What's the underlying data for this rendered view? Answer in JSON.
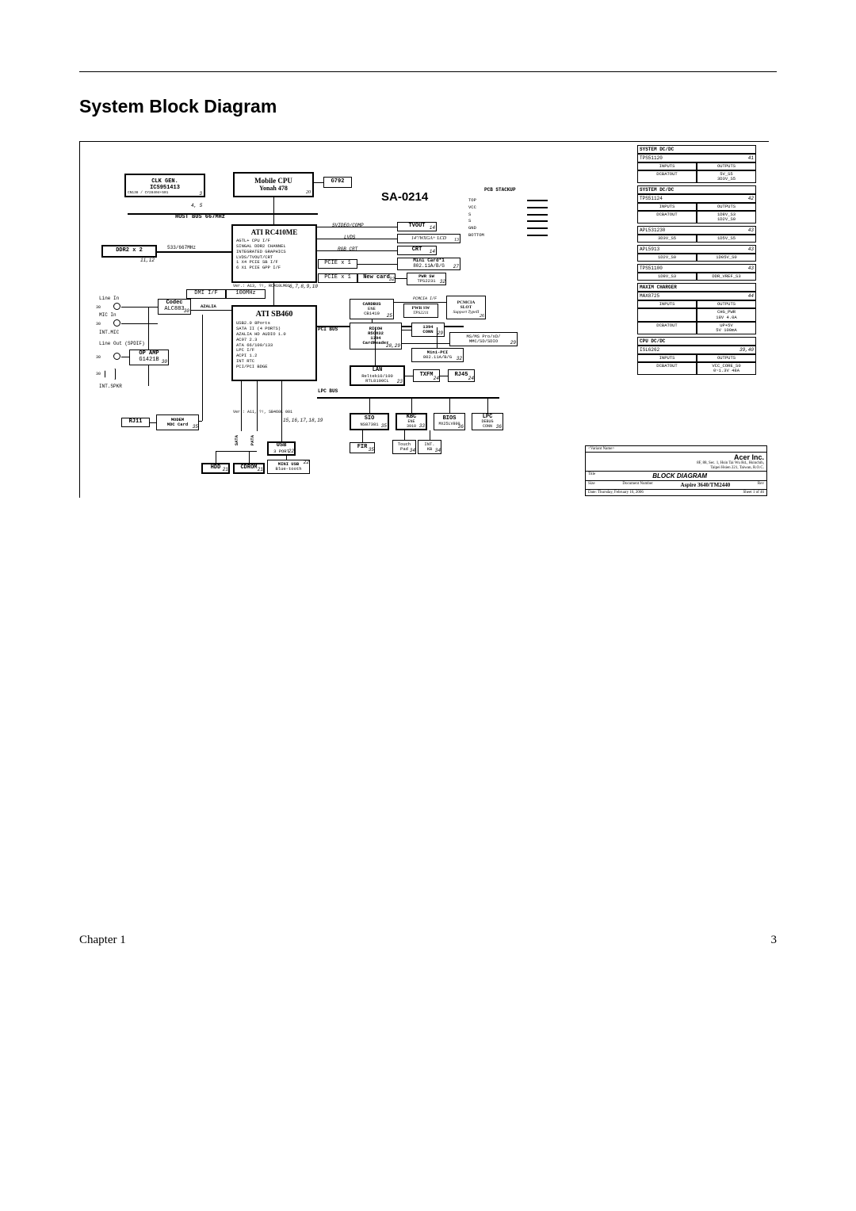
{
  "page": {
    "title": "System Block Diagram",
    "chapter_label": "Chapter 1",
    "page_number": "3"
  },
  "diagram": {
    "project_code": "SA-0214",
    "pcb_stackup_label": "PCB STACKUP",
    "stackup_layers": [
      "TOP",
      "VCC",
      "S",
      "S",
      "GND",
      "BOTTOM"
    ],
    "blocks": {
      "clk": {
        "title": "CLK GEN.",
        "sub": "ICS951413",
        "note": "CN138  /  CY28404+501",
        "page": "3"
      },
      "cpu": {
        "title": "Mobile CPU",
        "sub": "Yonah 478",
        "page": "20"
      },
      "g792": {
        "title": "G792"
      },
      "hostbus": "HOST BUS   667MHz",
      "north": {
        "title": "ATI RC410ME",
        "lines": [
          "AGTL+ CPU I/F",
          "SINGAL DDR2 CHANNEL",
          "INTEGRATED GRAPHICS",
          "LVDS/TVOUT/CRT",
          "1 X4 PCIE SB I/F",
          "6 X1 PCIE GPP I/F"
        ],
        "ver": "Ver.: A13, ?!, RC410LM01",
        "pages": "6,7,8,9,10"
      },
      "ddr": {
        "title": "DDR2 x 2",
        "speed": "533/667MHz",
        "page": "11,12"
      },
      "svideo": "SVIDEO/COMP",
      "tvout": {
        "title": "TVOUT",
        "page": "14"
      },
      "lvds": "LVDS",
      "lcd": {
        "title": "14\"/WXGA+ LCD",
        "page": "13"
      },
      "rgb": "RGB CRT",
      "crt": {
        "title": "CRT",
        "page": "14"
      },
      "pciex1a": "PCIE x 1",
      "minicard1": {
        "title": "Mini Card*1",
        "sub": "802.11A/B/G",
        "page": "27"
      },
      "pciex1b": "PCIE x 1",
      "newcard": {
        "title": "New card",
        "page": "32"
      },
      "pwrsw_a": {
        "title": "PWR SW",
        "sub": "TPS2231",
        "page": "32"
      },
      "dmi": {
        "l": "DMI I/F",
        "r": "100MHz"
      },
      "south": {
        "title": "ATI SB460",
        "lines": [
          "USB2.0 8Ports",
          "SATA II (4 PORTS)",
          "AZALIA HD AUDIO 1.0",
          "AC97 2.3",
          "ATA 66/100/133",
          "LPC I/F",
          "ACPI 1.2",
          "INT RTC",
          "PCI/PCI BDGE"
        ],
        "ver": "Ver.: A11, ?!, SB460L 001",
        "pages": "15,16,17,18,19"
      },
      "azalia": "AZALIA",
      "codec": {
        "title": "Codec",
        "sub": "ALC883",
        "page": "30"
      },
      "audio_labels": {
        "linein": "Line In",
        "micin": "MIC In",
        "intmic": "INT.MIC",
        "lineout": "Line Out (SPDIF)",
        "intspkr": "INT.SPKR"
      },
      "opamp": {
        "title": "OP AMP",
        "sub": "G1421B",
        "page": "30"
      },
      "pcibus": "PCI BUS",
      "cardbus": {
        "title": "CARDBUS",
        "sub": "ENE",
        "sub2": "CB1410",
        "page": "25"
      },
      "pcmciaif": "PCMCIA I/F",
      "pcmcia": {
        "title": "PCMCIA",
        "sub": "SLOT",
        "page": "26",
        "note": "Support TypeII"
      },
      "pwrsw_b": {
        "title": "PWR SW",
        "sub": "TPS2211"
      },
      "ricoh": {
        "title": "RICOH",
        "sub": "R5C832",
        "sub2": "1394",
        "sub3": "CardReader",
        "page": "28,29"
      },
      "conn1394": {
        "title": "1394",
        "sub": "CONN",
        "page": "29"
      },
      "cardreader_slot": {
        "title": "MS/MS Pro/xD/",
        "sub": "MMC/SD/SDIO",
        "page": "29"
      },
      "minipci": {
        "title": "Mini-PCI",
        "sub": "802.11A/B/G",
        "page": "32"
      },
      "lan": {
        "title": "LAN",
        "sub": "Reltek10/100",
        "sub2": "RTL8100CL",
        "page": "23"
      },
      "txfm": {
        "title": "TXFM",
        "page": "24"
      },
      "rj45": {
        "title": "RJ45",
        "page": "24"
      },
      "lpcbus": "LPC BUS",
      "sio": {
        "title": "SIO",
        "sub": "NS87381",
        "page": "35"
      },
      "kbc": {
        "title": "KBC",
        "sub": "ENE",
        "sub2": "3910",
        "page": "33"
      },
      "bios": {
        "title": "BIOS",
        "sub": "MX25LV800",
        "page": "36"
      },
      "lpc": {
        "title": "LPC",
        "sub": "DEBUG",
        "sub2": "CONN",
        "page": "36"
      },
      "fir": {
        "title": "FIR",
        "page": "35"
      },
      "touchpad": {
        "title": "Touch",
        "sub": "Pad",
        "page": "34"
      },
      "intkb": {
        "title": "INT.",
        "sub": "KB",
        "page": "34"
      },
      "usb": {
        "title": "USB",
        "sub": "3 PORT",
        "page": "22"
      },
      "miniusb": {
        "title": "MINI USB",
        "sub": "Blue-tooth",
        "page": "22"
      },
      "hdd": {
        "title": "HDD",
        "page": "21"
      },
      "cdrom": {
        "title": "CDROM",
        "page": "21"
      },
      "sata": "SATA",
      "pata": "PATA",
      "modem": {
        "title": "MODEM",
        "sub": "MDC Card",
        "page": "35"
      },
      "rj11": {
        "title": "RJ11"
      }
    },
    "power_tables": [
      {
        "head": "SYSTEM DC/DC",
        "chip": "TPS51120",
        "page": "41",
        "rows": [
          [
            "INPUTS",
            "OUTPUTS"
          ],
          [
            "DCBATOUT",
            "5V_S5\n3D3V_S5"
          ]
        ]
      },
      {
        "head": "SYSTEM DC/DC",
        "chip": "TPS51124",
        "page": "42",
        "rows": [
          [
            "INPUTS",
            "OUTPUTS"
          ],
          [
            "DCBATOUT",
            "1D8V_S3\n1D2V_S0"
          ]
        ]
      },
      {
        "head": "",
        "chip": "APL531230",
        "page": "",
        "rows": [
          [
            "3D3V_S5",
            "1D5V_S5"
          ]
        ],
        "split_after": "43"
      },
      {
        "head": "",
        "chip": "APL5913",
        "page": "",
        "rows": [
          [
            "1D2V_S0",
            "1D05V_S0"
          ]
        ],
        "split_after": "43"
      },
      {
        "head": "",
        "chip": "TPS51100",
        "page": "",
        "rows": [
          [
            "1D8V_S3",
            "DDR_VREF_S3"
          ]
        ],
        "split_after": "43"
      },
      {
        "head": "MAXIM CHARGER",
        "chip": "MAX8725",
        "page": "44",
        "rows": [
          [
            "INPUTS",
            "OUTPUTS"
          ],
          [
            "",
            "CHG_PWR\n18V  4.0A"
          ],
          [
            "DCBATOUT",
            "UP+5V\n5V  100mA"
          ]
        ]
      },
      {
        "head": "CPU DC/DC",
        "chip": "ISL6262",
        "page": "39,40",
        "rows": [
          [
            "INPUTS",
            "OUTPUTS"
          ],
          [
            "DCBATOUT",
            "VCC_CORE_S0\n0~1.3V  48A"
          ]
        ]
      }
    ],
    "titleblock": {
      "variant": "<Variant Name>",
      "company": "Acer Inc.",
      "addr": "8F, 88, Sec. 1, Hsin Tai Wu Rd., Hsinchih,\nTaipei Hsien 221, Taiwan, R.O.C.",
      "docname": "BLOCK DIAGRAM",
      "model": "Aspire 3640/TM2440",
      "date": "Date:  Thursday, February 16, 2006",
      "sheet": "Sheet   1  of  46",
      "rev_label": "Rev",
      "size_label": "Size",
      "docnum_label": "Document Number",
      "title_label": "Title"
    }
  }
}
